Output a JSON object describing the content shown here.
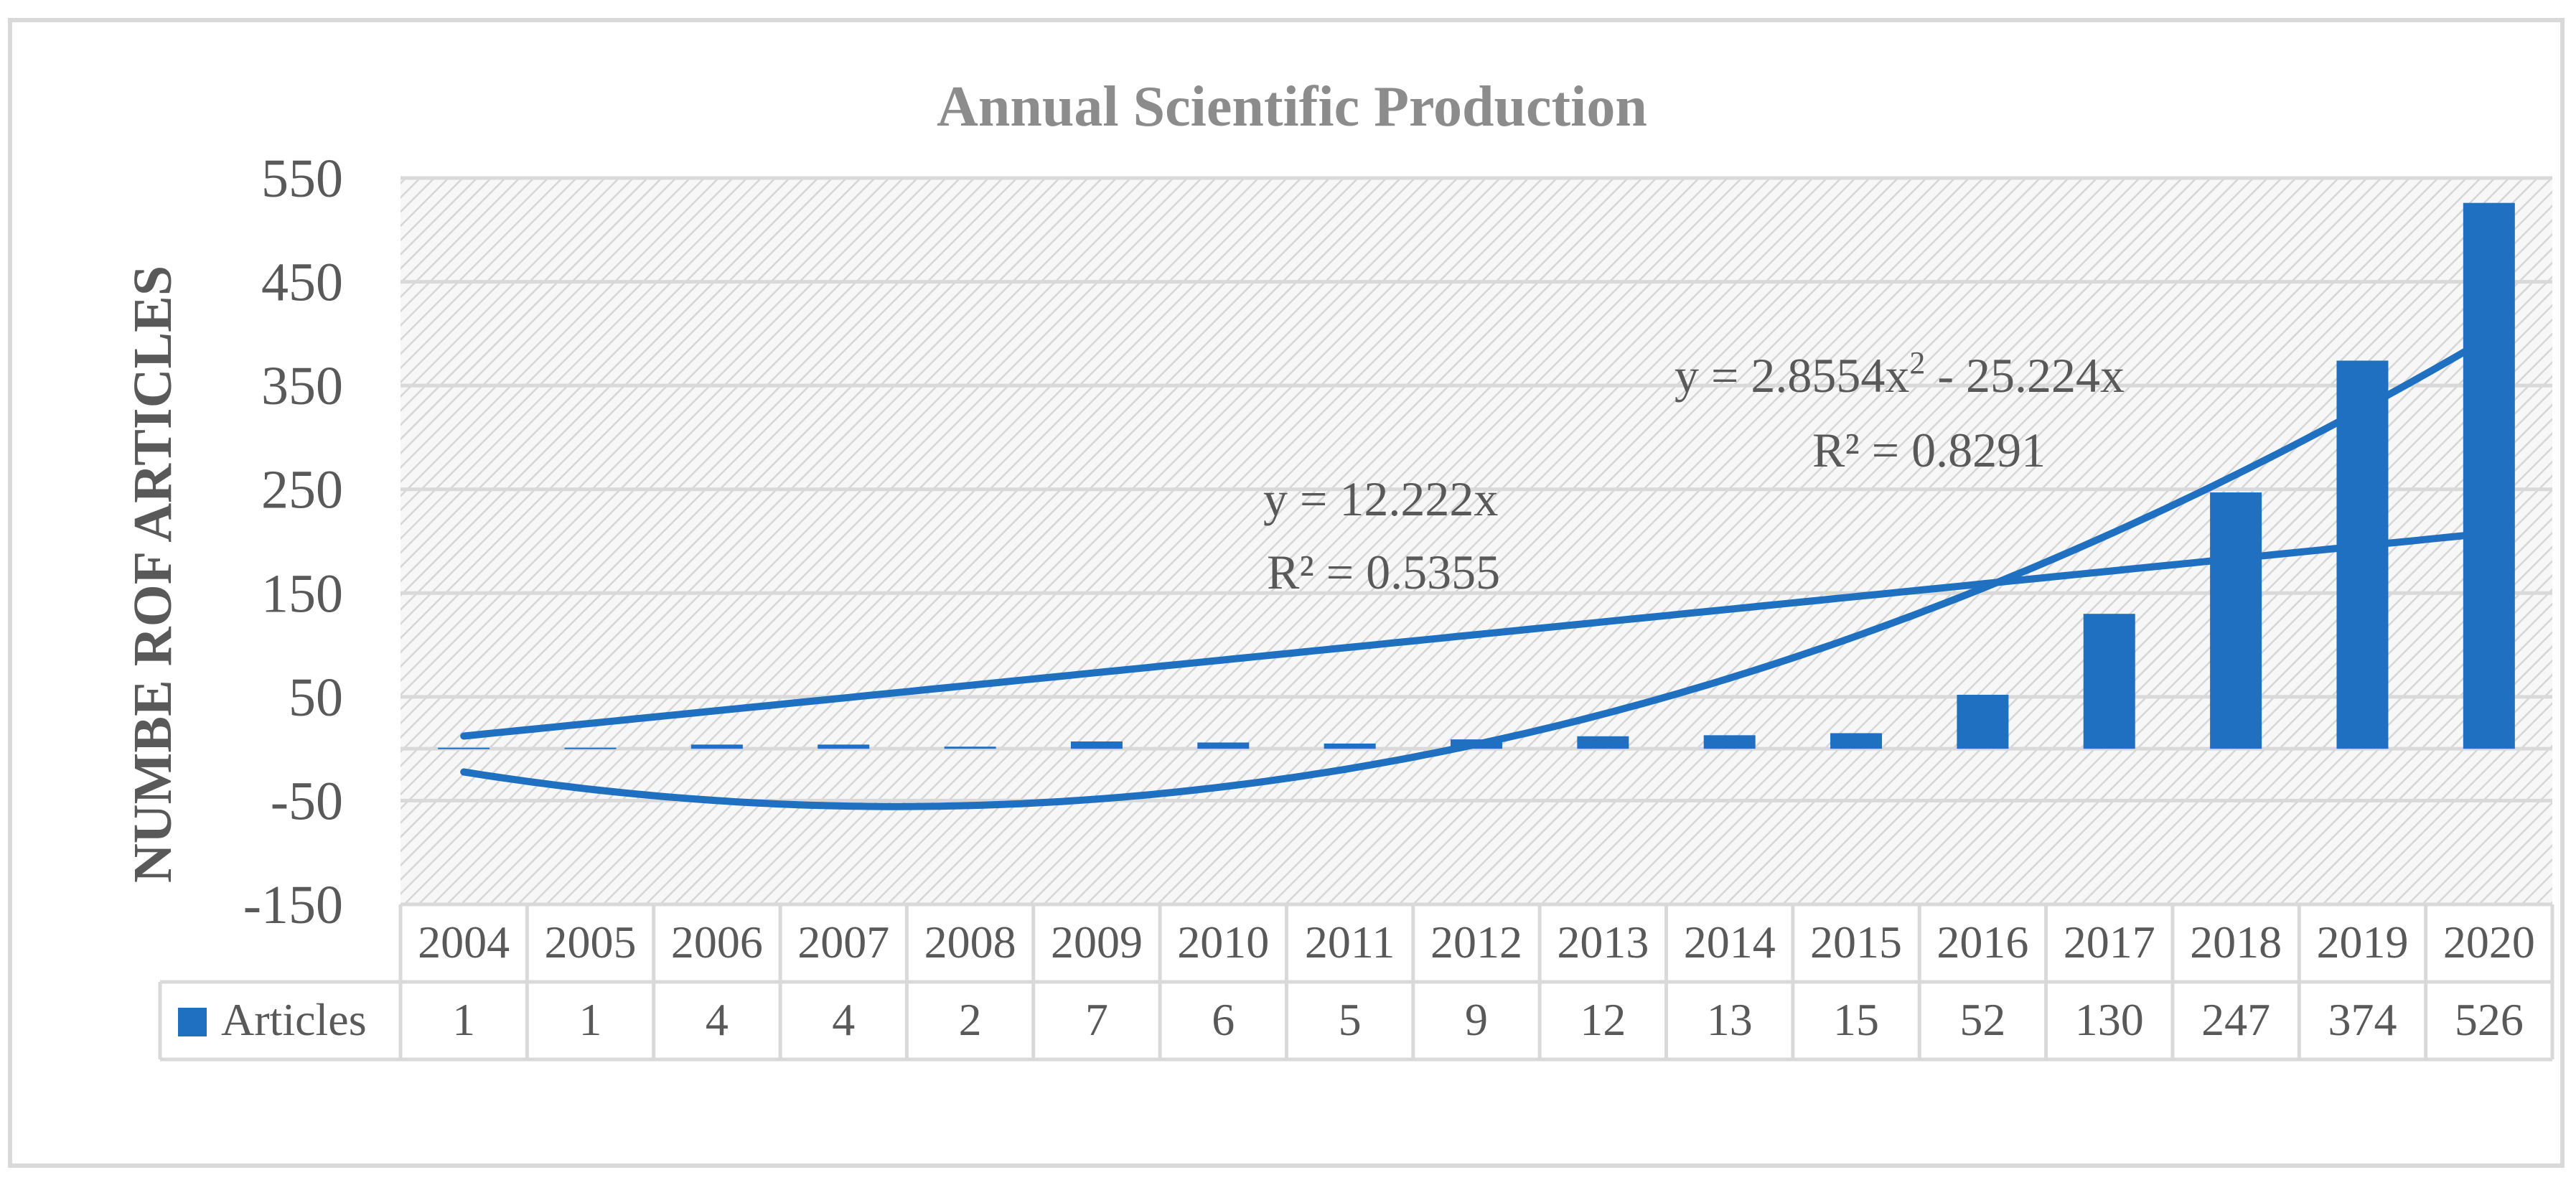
{
  "chart_data": {
    "type": "bar",
    "title": "Annual Scientific Production",
    "ylabel": "NUMBE ROF ARTICLES",
    "xlabel": "",
    "ylim": [
      -150,
      550
    ],
    "yticks": [
      "550",
      "450",
      "350",
      "250",
      "150",
      "50",
      "-50",
      "-150"
    ],
    "ytick_values": [
      550,
      450,
      350,
      250,
      150,
      50,
      -50,
      -150
    ],
    "categories": [
      "2004",
      "2005",
      "2006",
      "2007",
      "2008",
      "2009",
      "2010",
      "2011",
      "2012",
      "2013",
      "2014",
      "2015",
      "2016",
      "2017",
      "2018",
      "2019",
      "2020"
    ],
    "series": [
      {
        "name": "Articles",
        "values": [
          1,
          1,
          4,
          4,
          2,
          7,
          6,
          5,
          9,
          12,
          13,
          15,
          52,
          130,
          247,
          374,
          526
        ],
        "labels": [
          "1",
          "1",
          "4",
          "4",
          "2",
          "7",
          "6",
          "5",
          "9",
          "12",
          "13",
          "15",
          "52",
          "130",
          "247",
          "374",
          "526"
        ]
      }
    ],
    "trendlines": [
      {
        "type": "linear",
        "equation": "y = 12.222x",
        "r2": "R² = 0.5355",
        "coefficients": [
          0,
          12.222,
          0
        ]
      },
      {
        "type": "polynomial",
        "equation_prefix": "y = 2.8554x",
        "equation_exp": "2",
        "equation_suffix": " - 25.224x",
        "r2": "R² = 0.8291",
        "coefficients": [
          0,
          -25.224,
          2.8554
        ]
      }
    ],
    "grid": true,
    "legend": "data-table",
    "colors": {
      "bar": "#1F70C1",
      "trend": "#1F70C1",
      "title": "#8C8C8C",
      "axis_text": "#595959",
      "grid": "#D9D9D9",
      "table_border": "#D9D9D9",
      "hatch": "#D6D6D6"
    }
  }
}
